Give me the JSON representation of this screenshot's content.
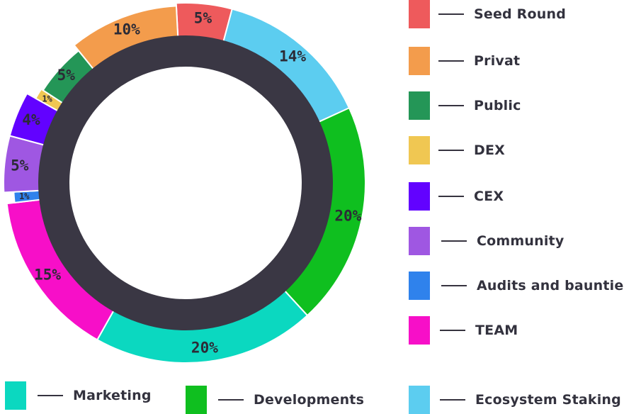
{
  "chart_data": {
    "type": "pie",
    "variant": "donut",
    "title": "",
    "start_angle_deg": -3,
    "direction": "clockwise",
    "inner_ring_color": "#3a3744",
    "slices": [
      {
        "label": "Seed Round",
        "value": 5,
        "display": "5%",
        "color": "#ee5a5c"
      },
      {
        "label": "Ecosystem Staking",
        "value": 14,
        "display": "14%",
        "color": "#5ccdf0"
      },
      {
        "label": "Developments",
        "value": 20,
        "display": "20%",
        "color": "#0fbf1f"
      },
      {
        "label": "Marketing",
        "value": 20,
        "display": "20%",
        "color": "#0bd8c0"
      },
      {
        "label": "TEAM",
        "value": 15,
        "display": "15%",
        "color": "#f70fc8"
      },
      {
        "label": "Audits and baunties",
        "value": 1,
        "display": "1%",
        "color": "#2f82ec"
      },
      {
        "label": "Community",
        "value": 5,
        "display": "5%",
        "color": "#9f57e2"
      },
      {
        "label": "CEX",
        "value": 4,
        "display": "4%",
        "color": "#6202ff"
      },
      {
        "label": "DEX",
        "value": 1,
        "display": "1%",
        "color": "#f0c752"
      },
      {
        "label": "Public",
        "value": 5,
        "display": "5%",
        "color": "#249657"
      },
      {
        "label": "Privat",
        "value": 10,
        "display": "10%",
        "color": "#f39c4c"
      }
    ]
  },
  "legend": [
    {
      "label": "Seed Round",
      "color": "#ee5a5c"
    },
    {
      "label": "Privat",
      "color": "#f39c4c"
    },
    {
      "label": "Public",
      "color": "#249657"
    },
    {
      "label": "DEX",
      "color": "#f0c752"
    },
    {
      "label": "CEX",
      "color": "#6202ff"
    },
    {
      "label": "Community",
      "color": "#9f57e2"
    },
    {
      "label": "Audits and baunties",
      "color": "#2f82ec"
    },
    {
      "label": "TEAM",
      "color": "#f70fc8"
    },
    {
      "label": "Marketing",
      "color": "#0bd8c0"
    },
    {
      "label": "Developments",
      "color": "#0fbf1f"
    },
    {
      "label": "Ecosystem Staking",
      "color": "#5ccdf0"
    }
  ]
}
